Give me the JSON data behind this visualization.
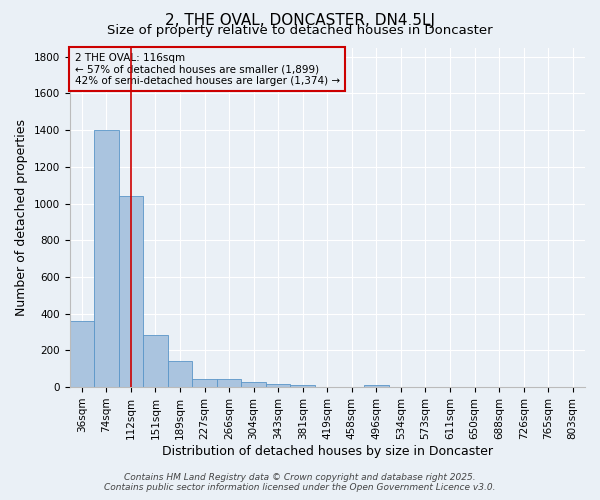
{
  "title": "2, THE OVAL, DONCASTER, DN4 5LJ",
  "subtitle": "Size of property relative to detached houses in Doncaster",
  "xlabel": "Distribution of detached houses by size in Doncaster",
  "ylabel": "Number of detached properties",
  "categories": [
    "36sqm",
    "74sqm",
    "112sqm",
    "151sqm",
    "189sqm",
    "227sqm",
    "266sqm",
    "304sqm",
    "343sqm",
    "381sqm",
    "419sqm",
    "458sqm",
    "496sqm",
    "534sqm",
    "573sqm",
    "611sqm",
    "650sqm",
    "688sqm",
    "726sqm",
    "765sqm",
    "803sqm"
  ],
  "values": [
    360,
    1400,
    1040,
    285,
    140,
    43,
    43,
    30,
    15,
    12,
    0,
    0,
    12,
    0,
    0,
    0,
    0,
    0,
    0,
    0,
    0
  ],
  "bar_color": "#aac4df",
  "bar_edge_color": "#5a96c8",
  "bg_color": "#eaf0f6",
  "grid_color": "#ffffff",
  "vline_x": 2.0,
  "vline_color": "#cc0000",
  "annotation_line1": "2 THE OVAL: 116sqm",
  "annotation_line2": "← 57% of detached houses are smaller (1,899)",
  "annotation_line3": "42% of semi-detached houses are larger (1,374) →",
  "annotation_box_color": "#cc0000",
  "ylim": [
    0,
    1850
  ],
  "yticks": [
    0,
    200,
    400,
    600,
    800,
    1000,
    1200,
    1400,
    1600,
    1800
  ],
  "footer_line1": "Contains HM Land Registry data © Crown copyright and database right 2025.",
  "footer_line2": "Contains public sector information licensed under the Open Government Licence v3.0.",
  "title_fontsize": 11,
  "subtitle_fontsize": 9.5,
  "label_fontsize": 9,
  "tick_fontsize": 7.5,
  "annotation_fontsize": 7.5,
  "footer_fontsize": 6.5
}
